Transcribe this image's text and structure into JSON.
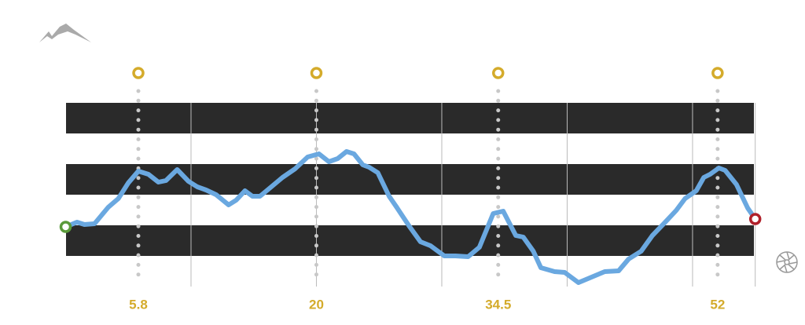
{
  "chart_data": {
    "type": "line",
    "x": [
      0,
      0.9,
      1.5,
      2.3,
      3.4,
      4.2,
      5.0,
      5.8,
      6.6,
      7.4,
      8.0,
      8.9,
      9.8,
      10.5,
      11.2,
      12.0,
      13.0,
      13.6,
      14.3,
      14.9,
      15.5,
      16.4,
      17.3,
      18.3,
      19.3,
      20.2,
      21.0,
      21.7,
      22.4,
      23.0,
      23.7,
      24.2,
      24.9,
      25.8,
      26.4,
      27.4,
      28.3,
      29.1,
      30.2,
      31.1,
      32.1,
      33.0,
      34.1,
      34.9,
      35.9,
      36.5,
      37.3,
      37.9,
      39.0,
      39.8,
      40.9,
      41.5,
      42.4,
      43.0,
      44.1,
      44.9,
      45.9,
      46.8,
      47.7,
      48.7,
      49.4,
      50.3,
      50.9,
      51.4,
      52.1,
      52.6,
      53.5,
      54.4,
      55
    ],
    "values": [
      76,
      82,
      79,
      80,
      101,
      112,
      132,
      147,
      143,
      133,
      135,
      149,
      134,
      127,
      123,
      117,
      104,
      110,
      122,
      115,
      115,
      127,
      139,
      150,
      165,
      169,
      159,
      163,
      172,
      169,
      155,
      152,
      145,
      115,
      101,
      77,
      57,
      52,
      39,
      39,
      38,
      50,
      93,
      96,
      65,
      63,
      45,
      24,
      19,
      18,
      5,
      9,
      15,
      19,
      20,
      35,
      45,
      65,
      80,
      97,
      112,
      122,
      139,
      143,
      151,
      148,
      130,
      100,
      86
    ],
    "color": "#6aa8e0",
    "start_color": "#5a9a3a",
    "end_color": "#b0202a",
    "xlim": [
      0,
      55
    ],
    "ylim": [
      0,
      234
    ],
    "xgrid": [
      10,
      20,
      30,
      40,
      50,
      55
    ],
    "checkpoints": [
      5.8,
      20,
      34.5,
      52
    ],
    "checkpoint_color": "#d4ab2b"
  }
}
